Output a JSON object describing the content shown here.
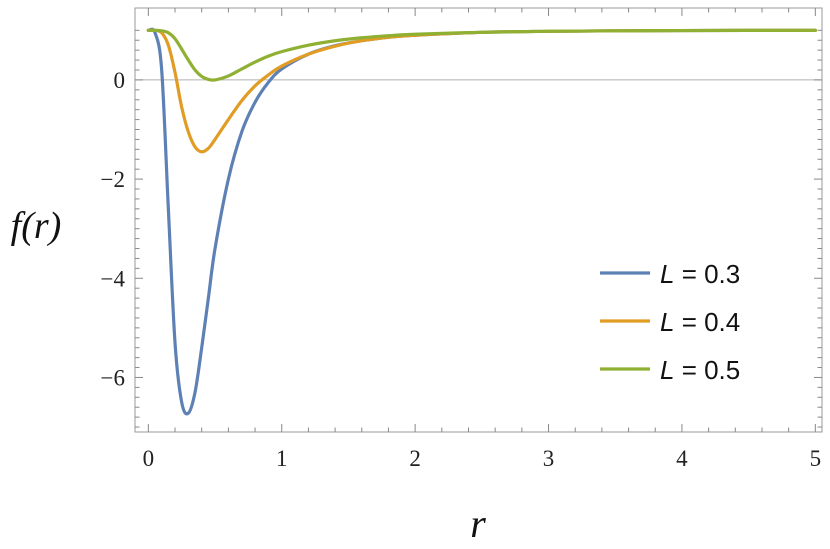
{
  "chart_data": {
    "type": "line",
    "xlabel": "r",
    "ylabel": "f(r)",
    "xlim": [
      -0.1,
      5.05
    ],
    "ylim": [
      -7.1,
      1.45
    ],
    "x_ticks": [
      0,
      1,
      2,
      3,
      4,
      5
    ],
    "x_tick_labels": [
      "0",
      "1",
      "2",
      "3",
      "4",
      "5"
    ],
    "y_ticks": [
      0,
      -2,
      -4,
      -6
    ],
    "y_tick_labels": [
      "0",
      "−2",
      "−4",
      "−6"
    ],
    "grid": false,
    "frame": true,
    "zero_line": true,
    "legend_position": "bottom-right",
    "x": [
      0.0,
      0.05,
      0.1,
      0.15,
      0.2,
      0.25,
      0.3,
      0.35,
      0.4,
      0.45,
      0.5,
      0.6,
      0.7,
      0.8,
      0.9,
      1.0,
      1.2,
      1.4,
      1.6,
      1.8,
      2.0,
      2.5,
      3.0,
      3.5,
      4.0,
      4.5,
      5.0
    ],
    "series": [
      {
        "name": "L = 0.3",
        "color": "#5e81b5",
        "values": [
          1.0,
          0.95,
          0.2,
          -2.6,
          -5.3,
          -6.5,
          -6.72,
          -6.3,
          -5.4,
          -4.4,
          -3.4,
          -2.0,
          -1.05,
          -0.45,
          -0.05,
          0.22,
          0.52,
          0.69,
          0.79,
          0.86,
          0.9,
          0.96,
          0.98,
          0.99,
          0.995,
          0.998,
          1.0
        ]
      },
      {
        "name": "L = 0.4",
        "color": "#e19c24",
        "values": [
          1.0,
          1.0,
          0.95,
          0.7,
          0.15,
          -0.55,
          -1.05,
          -1.35,
          -1.45,
          -1.38,
          -1.2,
          -0.8,
          -0.42,
          -0.12,
          0.1,
          0.28,
          0.52,
          0.68,
          0.79,
          0.86,
          0.9,
          0.96,
          0.98,
          0.99,
          0.995,
          0.998,
          1.0
        ]
      },
      {
        "name": "L = 0.5",
        "color": "#8fb032",
        "values": [
          1.0,
          1.0,
          0.99,
          0.95,
          0.83,
          0.62,
          0.4,
          0.2,
          0.07,
          0.01,
          0.0,
          0.08,
          0.22,
          0.36,
          0.48,
          0.57,
          0.7,
          0.79,
          0.85,
          0.89,
          0.92,
          0.96,
          0.98,
          0.99,
          0.995,
          0.998,
          1.0
        ]
      }
    ]
  }
}
